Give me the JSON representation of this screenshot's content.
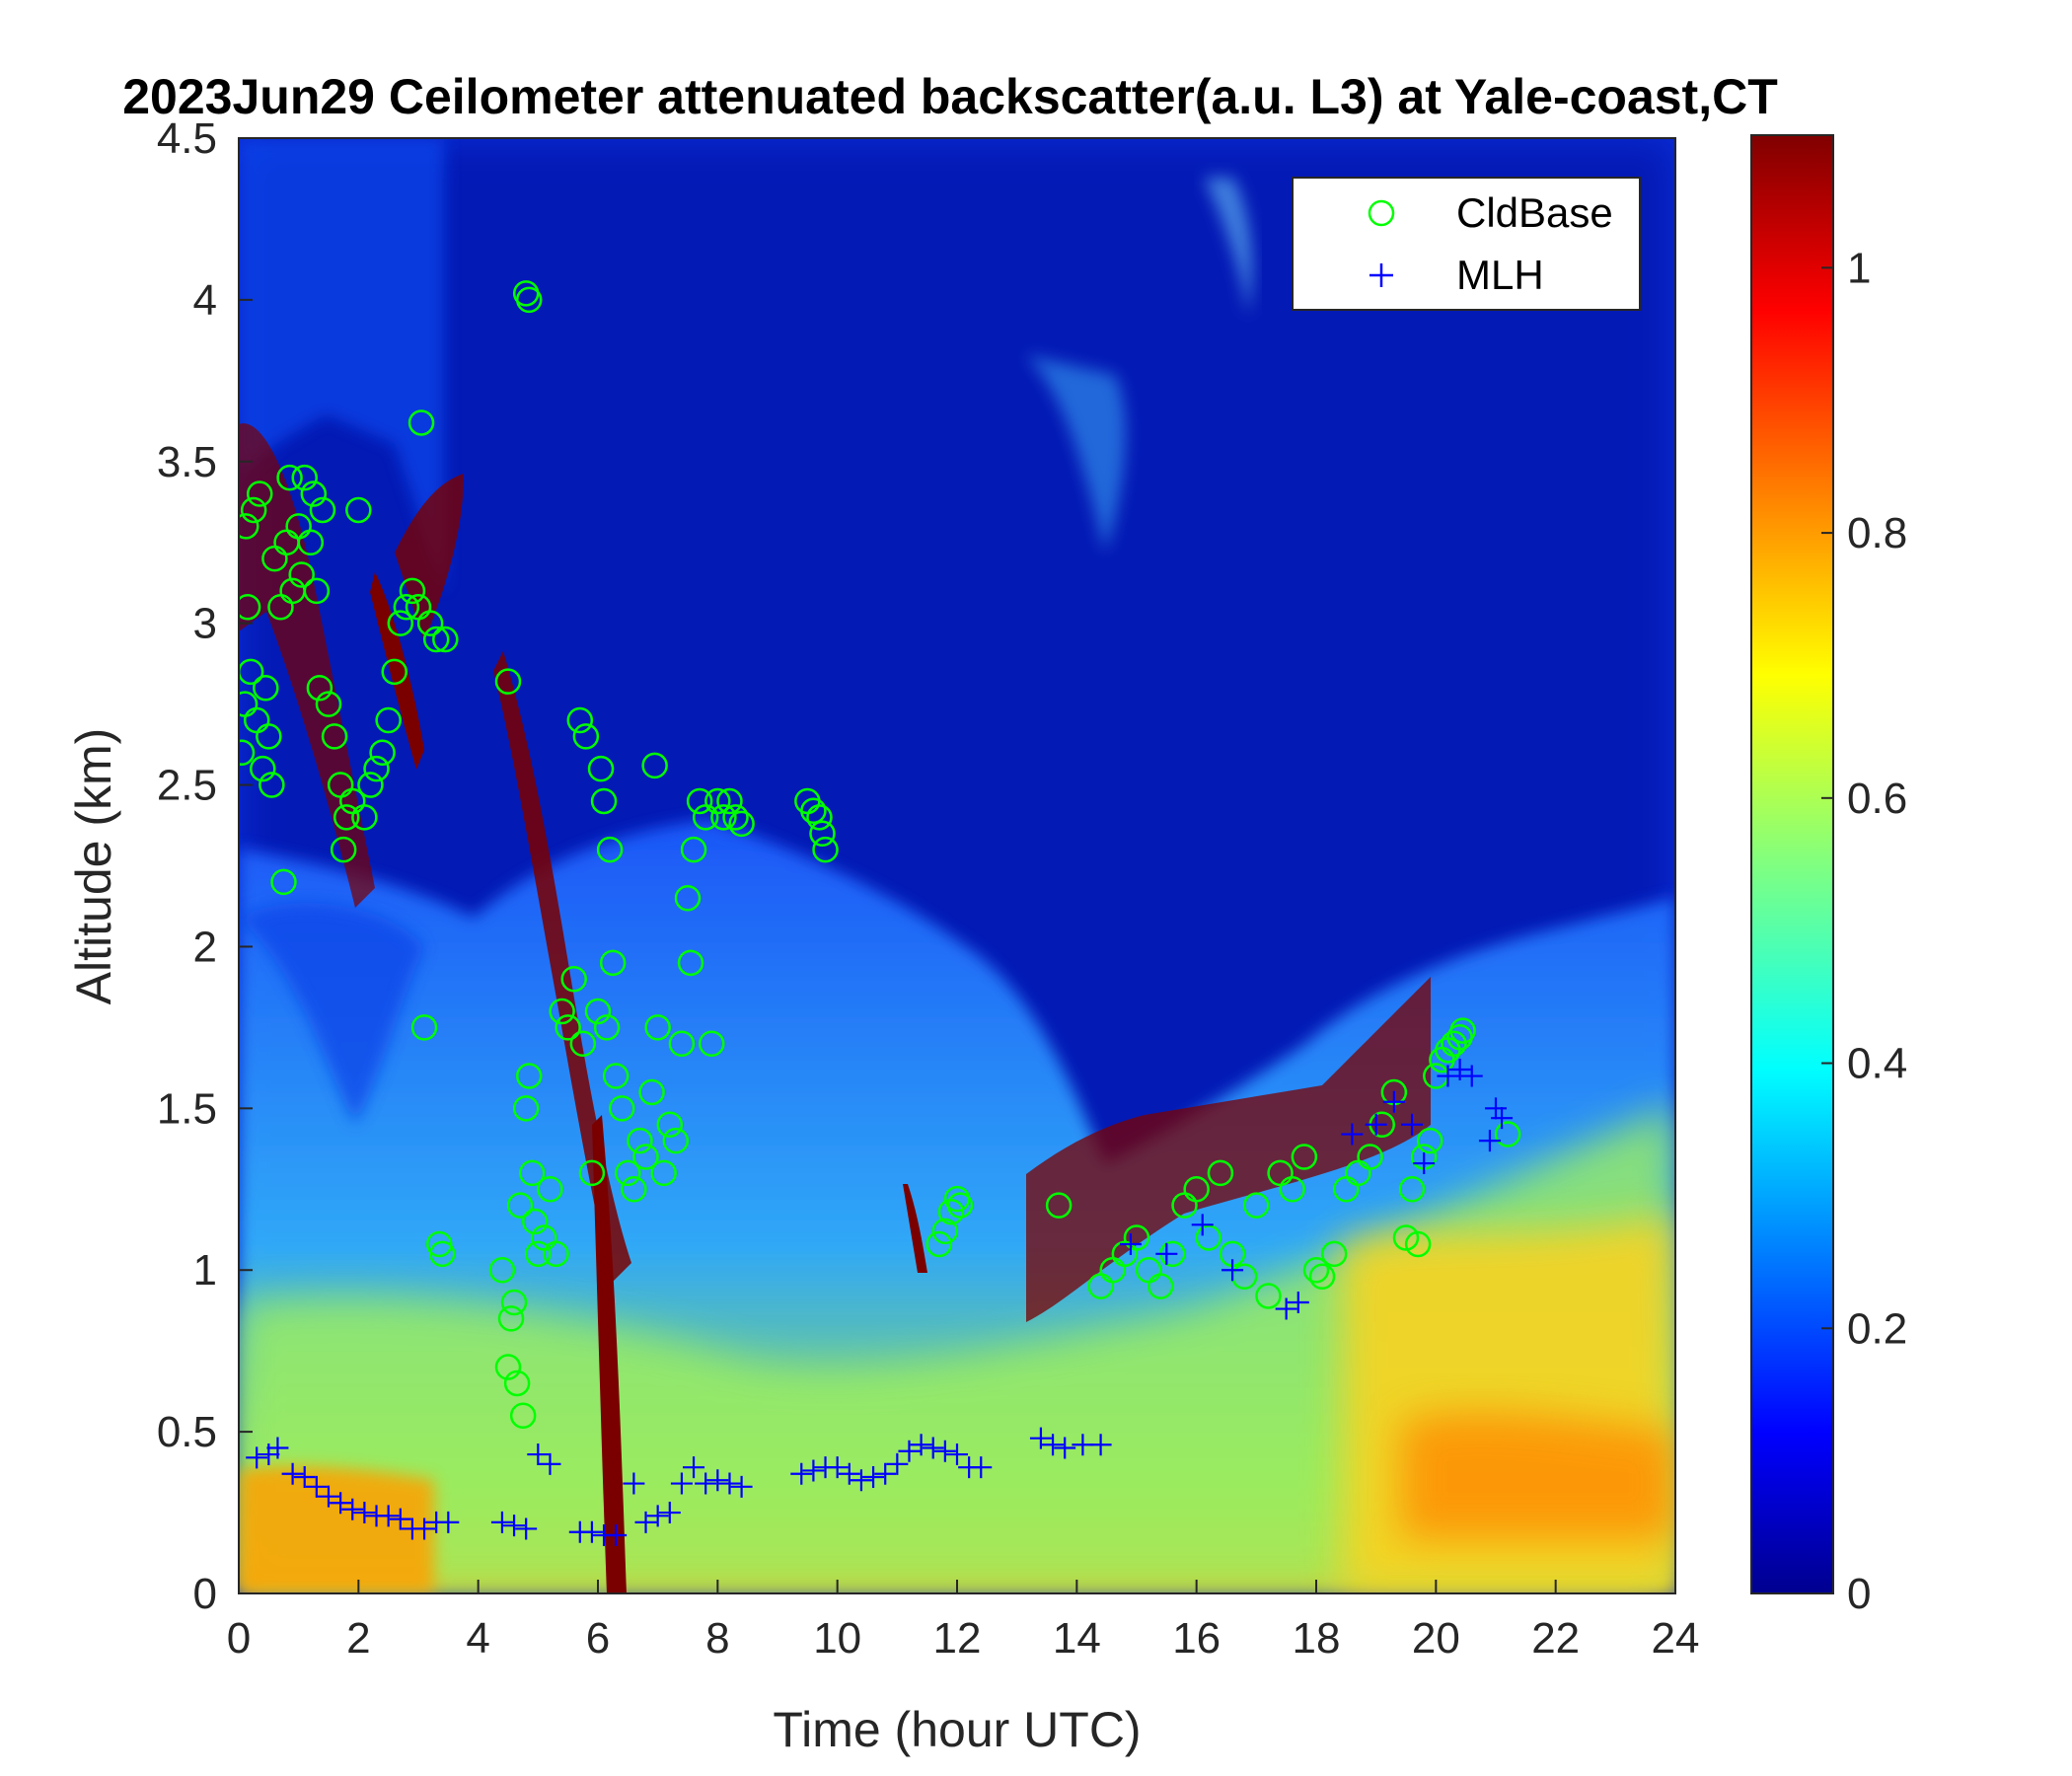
{
  "chart_data": {
    "type": "heatmap",
    "title": "2023Jun29 Ceilometer attenuated backscatter(a.u. L3) at Yale-coast,CT",
    "xlabel": "Time (hour UTC)",
    "ylabel": "Altitude (km)",
    "xlim": [
      0,
      24
    ],
    "ylim": [
      0,
      4.5
    ],
    "x_ticks": [
      0,
      2,
      4,
      6,
      8,
      10,
      12,
      14,
      16,
      18,
      20,
      22,
      24
    ],
    "y_ticks": [
      0,
      0.5,
      1,
      1.5,
      2,
      2.5,
      3,
      3.5,
      4,
      4.5
    ],
    "y_tick_labels": [
      "0",
      "0.5",
      "1",
      "1.5",
      "2",
      "2.5",
      "3",
      "3.5",
      "4",
      "4.5"
    ],
    "colorbar": {
      "colormap": "jet",
      "clim": [
        0,
        1.1
      ],
      "ticks": [
        0,
        0.2,
        0.4,
        0.6,
        0.8,
        1
      ]
    },
    "legend": {
      "position": "top-right",
      "entries": [
        {
          "name": "CldBase",
          "marker": "circle",
          "color": "#00ff00"
        },
        {
          "name": "MLH",
          "marker": "plus",
          "color": "#0000ff"
        }
      ]
    },
    "series": [
      {
        "name": "CldBase",
        "points": [
          [
            0.05,
            2.6
          ],
          [
            0.1,
            2.75
          ],
          [
            0.12,
            3.3
          ],
          [
            0.15,
            3.05
          ],
          [
            0.2,
            2.85
          ],
          [
            0.25,
            3.35
          ],
          [
            0.3,
            2.7
          ],
          [
            0.35,
            3.4
          ],
          [
            0.4,
            2.55
          ],
          [
            0.45,
            2.8
          ],
          [
            0.5,
            2.65
          ],
          [
            0.55,
            2.5
          ],
          [
            0.6,
            3.2
          ],
          [
            0.7,
            3.05
          ],
          [
            0.75,
            2.2
          ],
          [
            0.8,
            3.25
          ],
          [
            0.85,
            3.45
          ],
          [
            0.9,
            3.1
          ],
          [
            1.0,
            3.3
          ],
          [
            1.05,
            3.15
          ],
          [
            1.1,
            3.45
          ],
          [
            1.2,
            3.25
          ],
          [
            1.25,
            3.4
          ],
          [
            1.3,
            3.1
          ],
          [
            1.35,
            2.8
          ],
          [
            1.4,
            3.35
          ],
          [
            1.5,
            2.75
          ],
          [
            1.6,
            2.65
          ],
          [
            1.7,
            2.5
          ],
          [
            1.75,
            2.3
          ],
          [
            1.8,
            2.4
          ],
          [
            1.9,
            2.45
          ],
          [
            2.0,
            3.35
          ],
          [
            2.1,
            2.4
          ],
          [
            2.2,
            2.5
          ],
          [
            2.3,
            2.55
          ],
          [
            2.4,
            2.6
          ],
          [
            2.5,
            2.7
          ],
          [
            2.6,
            2.85
          ],
          [
            2.7,
            3.0
          ],
          [
            2.8,
            3.05
          ],
          [
            2.9,
            3.1
          ],
          [
            3.0,
            3.05
          ],
          [
            3.05,
            3.62
          ],
          [
            3.1,
            1.75
          ],
          [
            3.2,
            3.0
          ],
          [
            3.3,
            2.95
          ],
          [
            3.35,
            1.08
          ],
          [
            3.4,
            1.05
          ],
          [
            3.45,
            2.95
          ],
          [
            4.5,
            2.82
          ],
          [
            4.8,
            4.02
          ],
          [
            4.85,
            4.0
          ],
          [
            4.4,
            1.0
          ],
          [
            4.5,
            0.7
          ],
          [
            4.55,
            0.85
          ],
          [
            4.6,
            0.9
          ],
          [
            4.65,
            0.65
          ],
          [
            4.7,
            1.2
          ],
          [
            4.75,
            0.55
          ],
          [
            4.8,
            1.5
          ],
          [
            4.85,
            1.6
          ],
          [
            4.9,
            1.3
          ],
          [
            4.95,
            1.15
          ],
          [
            5.0,
            1.05
          ],
          [
            5.1,
            1.1
          ],
          [
            5.2,
            1.25
          ],
          [
            5.3,
            1.05
          ],
          [
            5.4,
            1.8
          ],
          [
            5.5,
            1.75
          ],
          [
            5.6,
            1.9
          ],
          [
            5.7,
            2.7
          ],
          [
            5.75,
            1.7
          ],
          [
            5.8,
            2.65
          ],
          [
            5.9,
            1.3
          ],
          [
            6.0,
            1.8
          ],
          [
            6.05,
            2.55
          ],
          [
            6.1,
            2.45
          ],
          [
            6.15,
            1.75
          ],
          [
            6.2,
            2.3
          ],
          [
            6.25,
            1.95
          ],
          [
            6.3,
            1.6
          ],
          [
            6.4,
            1.5
          ],
          [
            6.5,
            1.3
          ],
          [
            6.6,
            1.25
          ],
          [
            6.7,
            1.4
          ],
          [
            6.8,
            1.35
          ],
          [
            6.9,
            1.55
          ],
          [
            6.95,
            2.56
          ],
          [
            7.0,
            1.75
          ],
          [
            7.1,
            1.3
          ],
          [
            7.2,
            1.45
          ],
          [
            7.3,
            1.4
          ],
          [
            7.4,
            1.7
          ],
          [
            7.5,
            2.15
          ],
          [
            7.55,
            1.95
          ],
          [
            7.6,
            2.3
          ],
          [
            7.7,
            2.45
          ],
          [
            7.8,
            2.4
          ],
          [
            7.9,
            1.7
          ],
          [
            8.0,
            2.45
          ],
          [
            8.1,
            2.4
          ],
          [
            8.2,
            2.45
          ],
          [
            8.3,
            2.4
          ],
          [
            8.4,
            2.38
          ],
          [
            9.5,
            2.45
          ],
          [
            9.6,
            2.42
          ],
          [
            9.7,
            2.4
          ],
          [
            9.75,
            2.35
          ],
          [
            9.8,
            2.3
          ],
          [
            11.7,
            1.08
          ],
          [
            11.8,
            1.12
          ],
          [
            11.9,
            1.18
          ],
          [
            12.0,
            1.22
          ],
          [
            12.05,
            1.2
          ],
          [
            13.7,
            1.2
          ],
          [
            14.4,
            0.95
          ],
          [
            14.6,
            1.0
          ],
          [
            14.8,
            1.05
          ],
          [
            15.0,
            1.1
          ],
          [
            15.2,
            1.0
          ],
          [
            15.4,
            0.95
          ],
          [
            15.6,
            1.05
          ],
          [
            15.8,
            1.2
          ],
          [
            16.0,
            1.25
          ],
          [
            16.2,
            1.1
          ],
          [
            16.4,
            1.3
          ],
          [
            16.6,
            1.05
          ],
          [
            16.8,
            0.98
          ],
          [
            17.0,
            1.2
          ],
          [
            17.2,
            0.92
          ],
          [
            17.4,
            1.3
          ],
          [
            17.6,
            1.25
          ],
          [
            17.8,
            1.35
          ],
          [
            18.0,
            1.0
          ],
          [
            18.1,
            0.98
          ],
          [
            18.3,
            1.05
          ],
          [
            18.5,
            1.25
          ],
          [
            18.7,
            1.3
          ],
          [
            18.9,
            1.35
          ],
          [
            19.1,
            1.45
          ],
          [
            19.3,
            1.55
          ],
          [
            19.5,
            1.1
          ],
          [
            19.6,
            1.25
          ],
          [
            19.7,
            1.08
          ],
          [
            19.8,
            1.35
          ],
          [
            19.9,
            1.4
          ],
          [
            20.0,
            1.6
          ],
          [
            20.1,
            1.65
          ],
          [
            20.2,
            1.68
          ],
          [
            20.3,
            1.7
          ],
          [
            20.4,
            1.72
          ],
          [
            20.45,
            1.74
          ],
          [
            21.2,
            1.42
          ]
        ]
      },
      {
        "name": "MLH",
        "points": [
          [
            0.3,
            0.42
          ],
          [
            0.5,
            0.43
          ],
          [
            0.65,
            0.45
          ],
          [
            0.9,
            0.37
          ],
          [
            1.1,
            0.36
          ],
          [
            1.3,
            0.33
          ],
          [
            1.5,
            0.3
          ],
          [
            1.7,
            0.28
          ],
          [
            1.9,
            0.26
          ],
          [
            2.1,
            0.25
          ],
          [
            2.3,
            0.24
          ],
          [
            2.5,
            0.24
          ],
          [
            2.7,
            0.23
          ],
          [
            2.9,
            0.2
          ],
          [
            3.1,
            0.2
          ],
          [
            3.3,
            0.22
          ],
          [
            3.5,
            0.22
          ],
          [
            4.4,
            0.22
          ],
          [
            4.6,
            0.21
          ],
          [
            4.8,
            0.2
          ],
          [
            5.0,
            0.43
          ],
          [
            5.2,
            0.4
          ],
          [
            5.7,
            0.19
          ],
          [
            5.9,
            0.19
          ],
          [
            6.1,
            0.18
          ],
          [
            6.3,
            0.18
          ],
          [
            6.6,
            0.34
          ],
          [
            6.8,
            0.22
          ],
          [
            7.0,
            0.24
          ],
          [
            7.2,
            0.25
          ],
          [
            7.4,
            0.34
          ],
          [
            7.6,
            0.39
          ],
          [
            7.8,
            0.34
          ],
          [
            8.0,
            0.35
          ],
          [
            8.2,
            0.34
          ],
          [
            8.4,
            0.33
          ],
          [
            9.4,
            0.37
          ],
          [
            9.6,
            0.38
          ],
          [
            9.8,
            0.39
          ],
          [
            10.0,
            0.39
          ],
          [
            10.2,
            0.37
          ],
          [
            10.4,
            0.35
          ],
          [
            10.6,
            0.36
          ],
          [
            10.8,
            0.37
          ],
          [
            11.0,
            0.4
          ],
          [
            11.2,
            0.44
          ],
          [
            11.4,
            0.46
          ],
          [
            11.6,
            0.45
          ],
          [
            11.8,
            0.44
          ],
          [
            12.0,
            0.43
          ],
          [
            12.2,
            0.39
          ],
          [
            12.4,
            0.39
          ],
          [
            13.4,
            0.48
          ],
          [
            13.6,
            0.46
          ],
          [
            13.8,
            0.45
          ],
          [
            14.1,
            0.46
          ],
          [
            14.4,
            0.46
          ],
          [
            14.9,
            1.08
          ],
          [
            15.5,
            1.05
          ],
          [
            16.1,
            1.14
          ],
          [
            16.6,
            1.0
          ],
          [
            17.5,
            0.88
          ],
          [
            17.7,
            0.9
          ],
          [
            18.6,
            1.42
          ],
          [
            19.0,
            1.45
          ],
          [
            19.3,
            1.52
          ],
          [
            19.6,
            1.45
          ],
          [
            19.8,
            1.33
          ],
          [
            20.2,
            1.6
          ],
          [
            20.4,
            1.62
          ],
          [
            20.6,
            1.6
          ],
          [
            20.9,
            1.4
          ],
          [
            21.0,
            1.5
          ],
          [
            21.1,
            1.47
          ]
        ]
      }
    ]
  }
}
